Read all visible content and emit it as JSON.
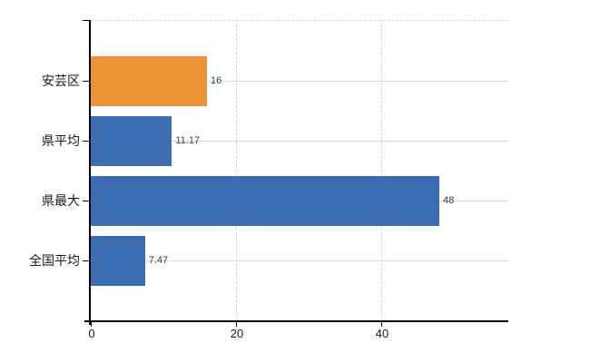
{
  "chart_data": {
    "type": "bar",
    "orientation": "horizontal",
    "categories": [
      "安芸区",
      "県平均",
      "県最大",
      "全国平均"
    ],
    "values": [
      16,
      11.17,
      48,
      7.47
    ],
    "value_labels": [
      "16",
      "11.17",
      "48",
      "7.47"
    ],
    "bar_colors": [
      "#EE9438",
      "#3D6DB1",
      "#3D6DB1",
      "#3D6DB1"
    ],
    "x_ticks": [
      0,
      20,
      40
    ],
    "x_tick_labels": [
      "0",
      "20",
      "40"
    ],
    "xlim": [
      0,
      57.5
    ],
    "grid": {
      "horizontal": "solid line at each category center",
      "vertical": "dashed line at each nonzero x tick",
      "top_border": "dashed"
    },
    "legend": "none"
  },
  "colors": {
    "highlight_bar": "#EE9438",
    "default_bar": "#3D6DB1",
    "grid_horizontal": "#D4DBD2",
    "grid_vertical": "#DBD5DA",
    "axis": "#000000",
    "value_label": "#3C3C3C",
    "category_label": "#1A1A1A",
    "tick_label": "#1A1A1A",
    "background": "#FFFFFF"
  }
}
